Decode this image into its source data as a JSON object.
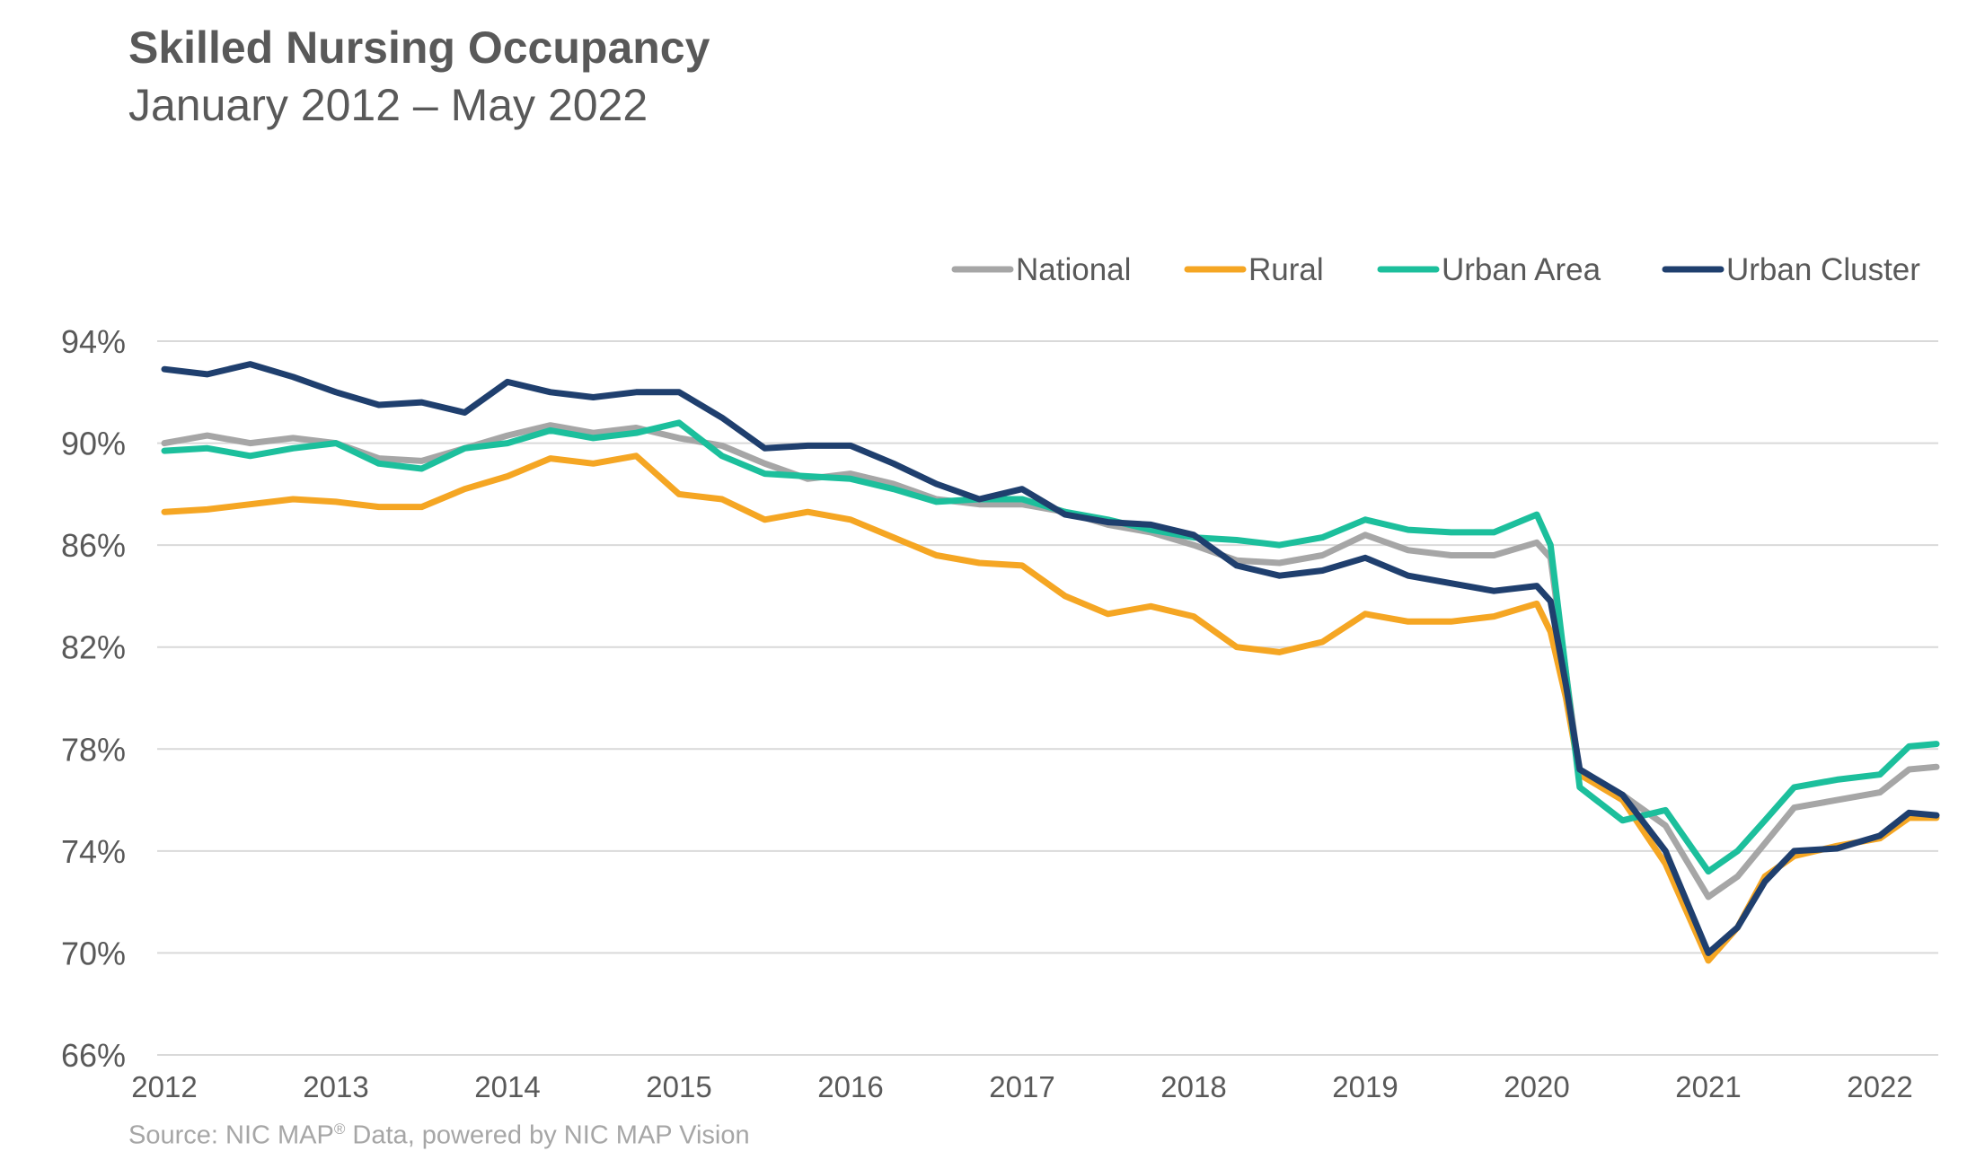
{
  "title": "Skilled Nursing Occupancy",
  "subtitle": "January 2012 – May 2022",
  "source": {
    "before": "Source: NIC MAP",
    "sup": "®",
    "after": " Data, powered by NIC MAP Vision"
  },
  "colors": {
    "National": "#a6a6a6",
    "Rural": "#f5a623",
    "Urban Area": "#1cbf9c",
    "Urban Cluster": "#1f3f6e",
    "grid": "#d9d9d9",
    "text": "#595959"
  },
  "chart_data": {
    "type": "line",
    "title": "Skilled Nursing Occupancy",
    "subtitle": "January 2012 – May 2022",
    "x_ticks": [
      "2012",
      "2013",
      "2014",
      "2015",
      "2016",
      "2017",
      "2018",
      "2019",
      "2020",
      "2021",
      "2022"
    ],
    "x_range": [
      2012.0,
      2022.33
    ],
    "y_ticks": [
      "66%",
      "70%",
      "74%",
      "78%",
      "82%",
      "86%",
      "90%",
      "94%"
    ],
    "ylim": [
      66,
      94
    ],
    "grid": "horizontal",
    "legend_position": "top-right",
    "series": [
      {
        "name": "National",
        "points": [
          [
            2012.0,
            90.0
          ],
          [
            2012.25,
            90.3
          ],
          [
            2012.5,
            90.0
          ],
          [
            2012.75,
            90.2
          ],
          [
            2013.0,
            90.0
          ],
          [
            2013.25,
            89.4
          ],
          [
            2013.5,
            89.3
          ],
          [
            2013.75,
            89.8
          ],
          [
            2014.0,
            90.3
          ],
          [
            2014.25,
            90.7
          ],
          [
            2014.5,
            90.4
          ],
          [
            2014.75,
            90.6
          ],
          [
            2015.0,
            90.2
          ],
          [
            2015.25,
            89.9
          ],
          [
            2015.5,
            89.2
          ],
          [
            2015.75,
            88.6
          ],
          [
            2016.0,
            88.8
          ],
          [
            2016.25,
            88.4
          ],
          [
            2016.5,
            87.8
          ],
          [
            2016.75,
            87.6
          ],
          [
            2017.0,
            87.6
          ],
          [
            2017.25,
            87.3
          ],
          [
            2017.5,
            86.8
          ],
          [
            2017.75,
            86.5
          ],
          [
            2018.0,
            86.0
          ],
          [
            2018.25,
            85.4
          ],
          [
            2018.5,
            85.3
          ],
          [
            2018.75,
            85.6
          ],
          [
            2019.0,
            86.4
          ],
          [
            2019.25,
            85.8
          ],
          [
            2019.5,
            85.6
          ],
          [
            2019.75,
            85.6
          ],
          [
            2020.0,
            86.1
          ],
          [
            2020.08,
            85.5
          ],
          [
            2020.17,
            81.0
          ],
          [
            2020.25,
            77.0
          ],
          [
            2020.5,
            76.2
          ],
          [
            2020.75,
            75.0
          ],
          [
            2021.0,
            72.2
          ],
          [
            2021.17,
            73.0
          ],
          [
            2021.33,
            74.3
          ],
          [
            2021.5,
            75.7
          ],
          [
            2021.75,
            76.0
          ],
          [
            2022.0,
            76.3
          ],
          [
            2022.17,
            77.2
          ],
          [
            2022.33,
            77.3
          ]
        ]
      },
      {
        "name": "Rural",
        "points": [
          [
            2012.0,
            87.3
          ],
          [
            2012.25,
            87.4
          ],
          [
            2012.5,
            87.6
          ],
          [
            2012.75,
            87.8
          ],
          [
            2013.0,
            87.7
          ],
          [
            2013.25,
            87.5
          ],
          [
            2013.5,
            87.5
          ],
          [
            2013.75,
            88.2
          ],
          [
            2014.0,
            88.7
          ],
          [
            2014.25,
            89.4
          ],
          [
            2014.5,
            89.2
          ],
          [
            2014.75,
            89.5
          ],
          [
            2015.0,
            88.0
          ],
          [
            2015.25,
            87.8
          ],
          [
            2015.5,
            87.0
          ],
          [
            2015.75,
            87.3
          ],
          [
            2016.0,
            87.0
          ],
          [
            2016.25,
            86.3
          ],
          [
            2016.5,
            85.6
          ],
          [
            2016.75,
            85.3
          ],
          [
            2017.0,
            85.2
          ],
          [
            2017.25,
            84.0
          ],
          [
            2017.5,
            83.3
          ],
          [
            2017.75,
            83.6
          ],
          [
            2018.0,
            83.2
          ],
          [
            2018.25,
            82.0
          ],
          [
            2018.5,
            81.8
          ],
          [
            2018.75,
            82.2
          ],
          [
            2019.0,
            83.3
          ],
          [
            2019.25,
            83.0
          ],
          [
            2019.5,
            83.0
          ],
          [
            2019.75,
            83.2
          ],
          [
            2020.0,
            83.7
          ],
          [
            2020.08,
            82.6
          ],
          [
            2020.17,
            80.0
          ],
          [
            2020.25,
            77.0
          ],
          [
            2020.5,
            76.0
          ],
          [
            2020.75,
            73.5
          ],
          [
            2021.0,
            69.7
          ],
          [
            2021.17,
            71.0
          ],
          [
            2021.33,
            73.0
          ],
          [
            2021.5,
            73.8
          ],
          [
            2021.75,
            74.2
          ],
          [
            2022.0,
            74.5
          ],
          [
            2022.17,
            75.3
          ],
          [
            2022.33,
            75.3
          ]
        ]
      },
      {
        "name": "Urban Area",
        "points": [
          [
            2012.0,
            89.7
          ],
          [
            2012.25,
            89.8
          ],
          [
            2012.5,
            89.5
          ],
          [
            2012.75,
            89.8
          ],
          [
            2013.0,
            90.0
          ],
          [
            2013.25,
            89.2
          ],
          [
            2013.5,
            89.0
          ],
          [
            2013.75,
            89.8
          ],
          [
            2014.0,
            90.0
          ],
          [
            2014.25,
            90.5
          ],
          [
            2014.5,
            90.2
          ],
          [
            2014.75,
            90.4
          ],
          [
            2015.0,
            90.8
          ],
          [
            2015.25,
            89.5
          ],
          [
            2015.5,
            88.8
          ],
          [
            2015.75,
            88.7
          ],
          [
            2016.0,
            88.6
          ],
          [
            2016.25,
            88.2
          ],
          [
            2016.5,
            87.7
          ],
          [
            2016.75,
            87.8
          ],
          [
            2017.0,
            87.8
          ],
          [
            2017.25,
            87.3
          ],
          [
            2017.5,
            87.0
          ],
          [
            2017.75,
            86.6
          ],
          [
            2018.0,
            86.3
          ],
          [
            2018.25,
            86.2
          ],
          [
            2018.5,
            86.0
          ],
          [
            2018.75,
            86.3
          ],
          [
            2019.0,
            87.0
          ],
          [
            2019.25,
            86.6
          ],
          [
            2019.5,
            86.5
          ],
          [
            2019.75,
            86.5
          ],
          [
            2020.0,
            87.2
          ],
          [
            2020.08,
            86.0
          ],
          [
            2020.17,
            81.0
          ],
          [
            2020.25,
            76.5
          ],
          [
            2020.5,
            75.2
          ],
          [
            2020.75,
            75.6
          ],
          [
            2021.0,
            73.2
          ],
          [
            2021.17,
            74.0
          ],
          [
            2021.33,
            75.2
          ],
          [
            2021.5,
            76.5
          ],
          [
            2021.75,
            76.8
          ],
          [
            2022.0,
            77.0
          ],
          [
            2022.17,
            78.1
          ],
          [
            2022.33,
            78.2
          ]
        ]
      },
      {
        "name": "Urban Cluster",
        "points": [
          [
            2012.0,
            92.9
          ],
          [
            2012.25,
            92.7
          ],
          [
            2012.5,
            93.1
          ],
          [
            2012.75,
            92.6
          ],
          [
            2013.0,
            92.0
          ],
          [
            2013.25,
            91.5
          ],
          [
            2013.5,
            91.6
          ],
          [
            2013.75,
            91.2
          ],
          [
            2014.0,
            92.4
          ],
          [
            2014.25,
            92.0
          ],
          [
            2014.5,
            91.8
          ],
          [
            2014.75,
            92.0
          ],
          [
            2015.0,
            92.0
          ],
          [
            2015.25,
            91.0
          ],
          [
            2015.5,
            89.8
          ],
          [
            2015.75,
            89.9
          ],
          [
            2016.0,
            89.9
          ],
          [
            2016.25,
            89.2
          ],
          [
            2016.5,
            88.4
          ],
          [
            2016.75,
            87.8
          ],
          [
            2017.0,
            88.2
          ],
          [
            2017.25,
            87.2
          ],
          [
            2017.5,
            86.9
          ],
          [
            2017.75,
            86.8
          ],
          [
            2018.0,
            86.4
          ],
          [
            2018.25,
            85.2
          ],
          [
            2018.5,
            84.8
          ],
          [
            2018.75,
            85.0
          ],
          [
            2019.0,
            85.5
          ],
          [
            2019.25,
            84.8
          ],
          [
            2019.5,
            84.5
          ],
          [
            2019.75,
            84.2
          ],
          [
            2020.0,
            84.4
          ],
          [
            2020.08,
            83.8
          ],
          [
            2020.17,
            80.5
          ],
          [
            2020.25,
            77.2
          ],
          [
            2020.5,
            76.2
          ],
          [
            2020.75,
            74.0
          ],
          [
            2021.0,
            70.0
          ],
          [
            2021.17,
            71.0
          ],
          [
            2021.33,
            72.8
          ],
          [
            2021.5,
            74.0
          ],
          [
            2021.75,
            74.1
          ],
          [
            2022.0,
            74.6
          ],
          [
            2022.17,
            75.5
          ],
          [
            2022.33,
            75.4
          ]
        ]
      }
    ]
  }
}
